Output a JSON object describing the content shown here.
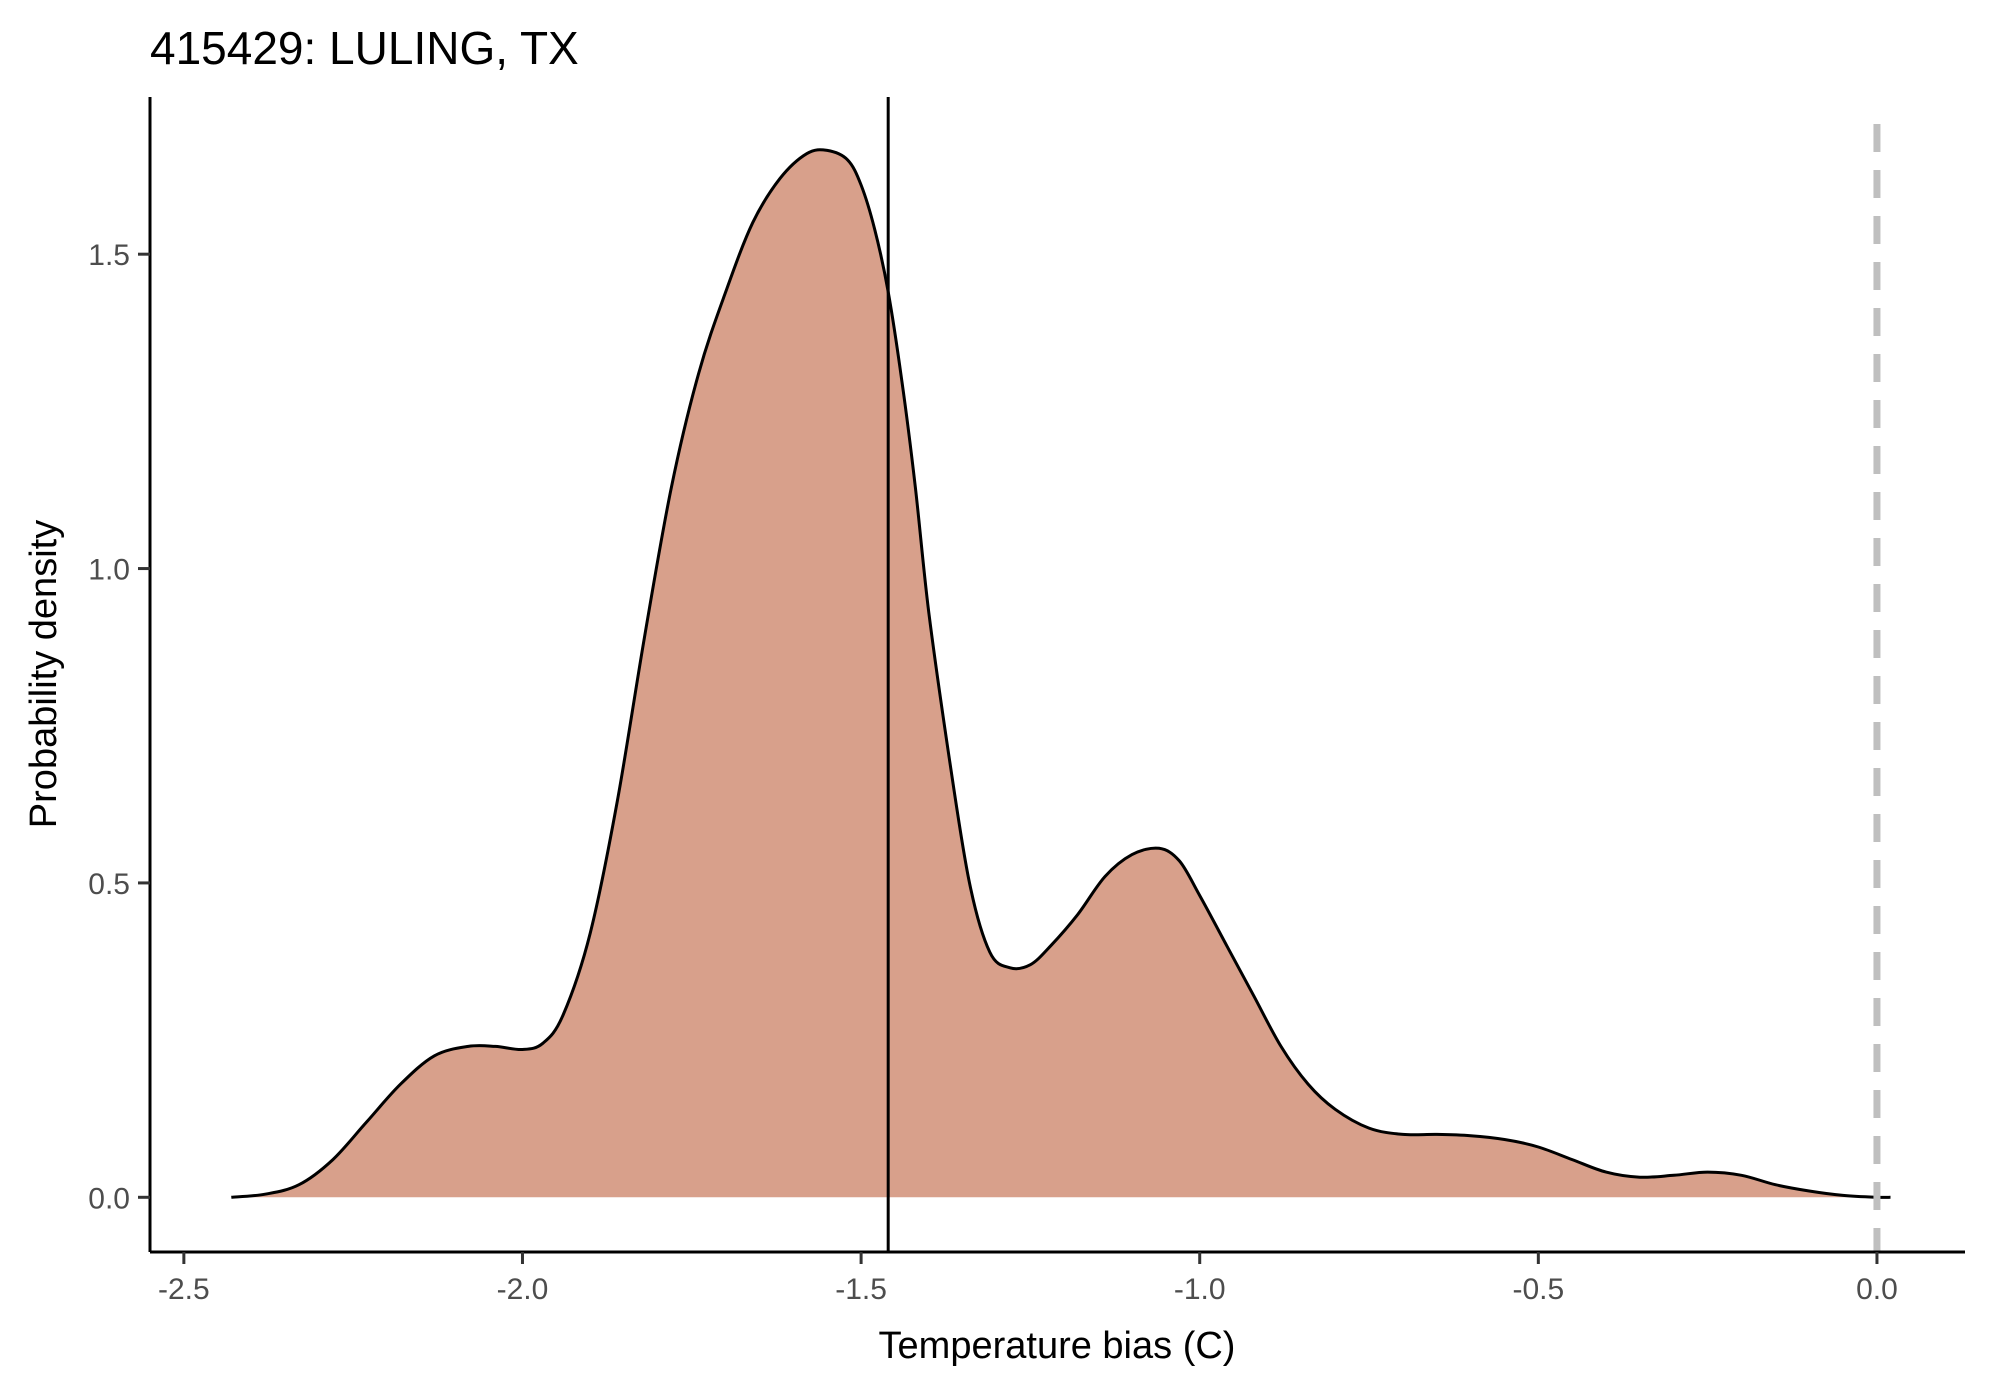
{
  "chart_data": {
    "type": "area",
    "title": "415429: LULING, TX",
    "xlabel": "Temperature bias (C)",
    "ylabel": "Probability density",
    "xlim": [
      -2.55,
      0.13
    ],
    "ylim": [
      -0.087,
      1.75
    ],
    "x_ticks": [
      -2.5,
      -2.0,
      -1.5,
      -1.0,
      -0.5,
      0.0
    ],
    "x_tick_labels": [
      "-2.5",
      "-2.0",
      "-1.5",
      "-1.0",
      "-0.5",
      "0.0"
    ],
    "y_ticks": [
      0.0,
      0.5,
      1.0,
      1.5
    ],
    "y_tick_labels": [
      "0.0",
      "0.5",
      "1.0",
      "1.5"
    ],
    "grid": false,
    "fill_color": "#d8a08b",
    "line_color": "#000000",
    "mean_line_x": -1.46,
    "zero_line_x": 0.0,
    "zero_line_color": "#bfbfbf",
    "series": [
      {
        "x": [
          -2.43,
          -2.38,
          -2.33,
          -2.28,
          -2.23,
          -2.18,
          -2.13,
          -2.08,
          -2.04,
          -2.0,
          -1.97,
          -1.94,
          -1.9,
          -1.86,
          -1.82,
          -1.78,
          -1.74,
          -1.7,
          -1.66,
          -1.62,
          -1.58,
          -1.55,
          -1.52,
          -1.5,
          -1.48,
          -1.46,
          -1.44,
          -1.42,
          -1.4,
          -1.37,
          -1.34,
          -1.31,
          -1.28,
          -1.25,
          -1.22,
          -1.18,
          -1.14,
          -1.1,
          -1.06,
          -1.03,
          -1.0,
          -0.96,
          -0.92,
          -0.88,
          -0.84,
          -0.8,
          -0.75,
          -0.7,
          -0.65,
          -0.6,
          -0.55,
          -0.5,
          -0.45,
          -0.4,
          -0.35,
          -0.3,
          -0.25,
          -0.2,
          -0.15,
          -0.1,
          -0.05,
          0.0,
          0.02
        ],
        "y": [
          0.0,
          0.005,
          0.02,
          0.06,
          0.12,
          0.18,
          0.225,
          0.24,
          0.24,
          0.235,
          0.245,
          0.29,
          0.42,
          0.63,
          0.89,
          1.13,
          1.31,
          1.44,
          1.55,
          1.62,
          1.66,
          1.665,
          1.65,
          1.61,
          1.54,
          1.44,
          1.3,
          1.13,
          0.93,
          0.7,
          0.5,
          0.39,
          0.365,
          0.37,
          0.4,
          0.45,
          0.51,
          0.545,
          0.555,
          0.535,
          0.48,
          0.4,
          0.32,
          0.24,
          0.18,
          0.14,
          0.11,
          0.1,
          0.1,
          0.098,
          0.092,
          0.08,
          0.06,
          0.04,
          0.032,
          0.035,
          0.04,
          0.035,
          0.02,
          0.01,
          0.003,
          0.0,
          0.0
        ]
      }
    ]
  }
}
